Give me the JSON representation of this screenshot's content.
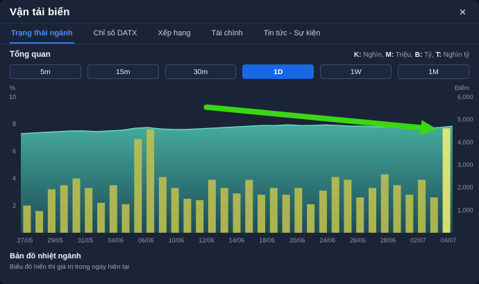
{
  "header": {
    "title": "Vận tải biển",
    "close_icon": "✕"
  },
  "tabs": [
    {
      "label": "Trạng thái ngành",
      "active": true
    },
    {
      "label": "Chỉ số DATX",
      "active": false
    },
    {
      "label": "Xếp hạng",
      "active": false
    },
    {
      "label": "Tài chính",
      "active": false
    },
    {
      "label": "Tin tức - Sự kiện",
      "active": false
    }
  ],
  "overview": {
    "title": "Tổng quan"
  },
  "units_legend": {
    "pairs": [
      {
        "key": "K:",
        "label": "Nghìn,"
      },
      {
        "key": "M:",
        "label": "Triệu,"
      },
      {
        "key": "B:",
        "label": "Tỷ,"
      },
      {
        "key": "T:",
        "label": "Nghìn tỷ"
      }
    ]
  },
  "ranges": [
    {
      "label": "5m",
      "active": false
    },
    {
      "label": "15m",
      "active": false
    },
    {
      "label": "30m",
      "active": false
    },
    {
      "label": "1D",
      "active": true
    },
    {
      "label": "1W",
      "active": false
    },
    {
      "label": "1M",
      "active": false
    }
  ],
  "chart_data": {
    "type": "composite-area-bar",
    "left_axis": {
      "label": "%",
      "min": 0,
      "max": 10,
      "ticks": [
        10,
        8,
        6,
        4,
        2
      ]
    },
    "right_axis": {
      "label": "Điểm",
      "min": 0,
      "max": 6000,
      "ticks": [
        6000,
        5000,
        4000,
        3000,
        2000,
        1000
      ]
    },
    "x_labels": [
      "27/05",
      "29/05",
      "31/05",
      "04/06",
      "06/06",
      "10/06",
      "12/06",
      "14/06",
      "18/06",
      "20/06",
      "24/06",
      "26/06",
      "28/06",
      "02/07",
      "04/07"
    ],
    "area_series_name": "industry-index-percent",
    "area": [
      7.3,
      7.35,
      7.4,
      7.45,
      7.5,
      7.5,
      7.45,
      7.5,
      7.55,
      7.7,
      7.75,
      7.65,
      7.6,
      7.6,
      7.65,
      7.7,
      7.75,
      7.8,
      7.85,
      7.9,
      7.9,
      7.95,
      7.9,
      7.9,
      7.95,
      7.9,
      7.85,
      7.85,
      7.8,
      7.8,
      7.75,
      7.7,
      7.7,
      7.75,
      7.85
    ],
    "bars_series_name": "daily-value-bars",
    "bars": [
      2.0,
      1.6,
      3.2,
      3.5,
      4.0,
      3.3,
      2.2,
      3.5,
      2.1,
      6.9,
      7.6,
      4.1,
      3.3,
      2.5,
      2.4,
      3.9,
      3.3,
      2.9,
      3.9,
      2.8,
      3.3,
      2.8,
      3.3,
      2.1,
      3.1,
      4.1,
      3.9,
      2.6,
      3.3,
      4.3,
      3.5,
      2.8,
      3.9,
      2.6,
      7.7
    ],
    "colors": {
      "bar": "#bfc04f",
      "bar_highlight": "#f0ef75",
      "area_top": "#45ac9c",
      "area_bottom": "#1d4a57",
      "line": "#6fdcc2",
      "arrow": "#3bd615",
      "tick": "#8e97ab"
    },
    "annotation_arrow": {
      "x1": 0.43,
      "y1": 9.25,
      "x2": 0.965,
      "y2": 7.62,
      "width": 8
    }
  },
  "footer": {
    "title": "Bản đồ nhiệt ngành",
    "subtitle": "Biểu đồ hiển thị giá trị trong ngày hiện tại"
  }
}
